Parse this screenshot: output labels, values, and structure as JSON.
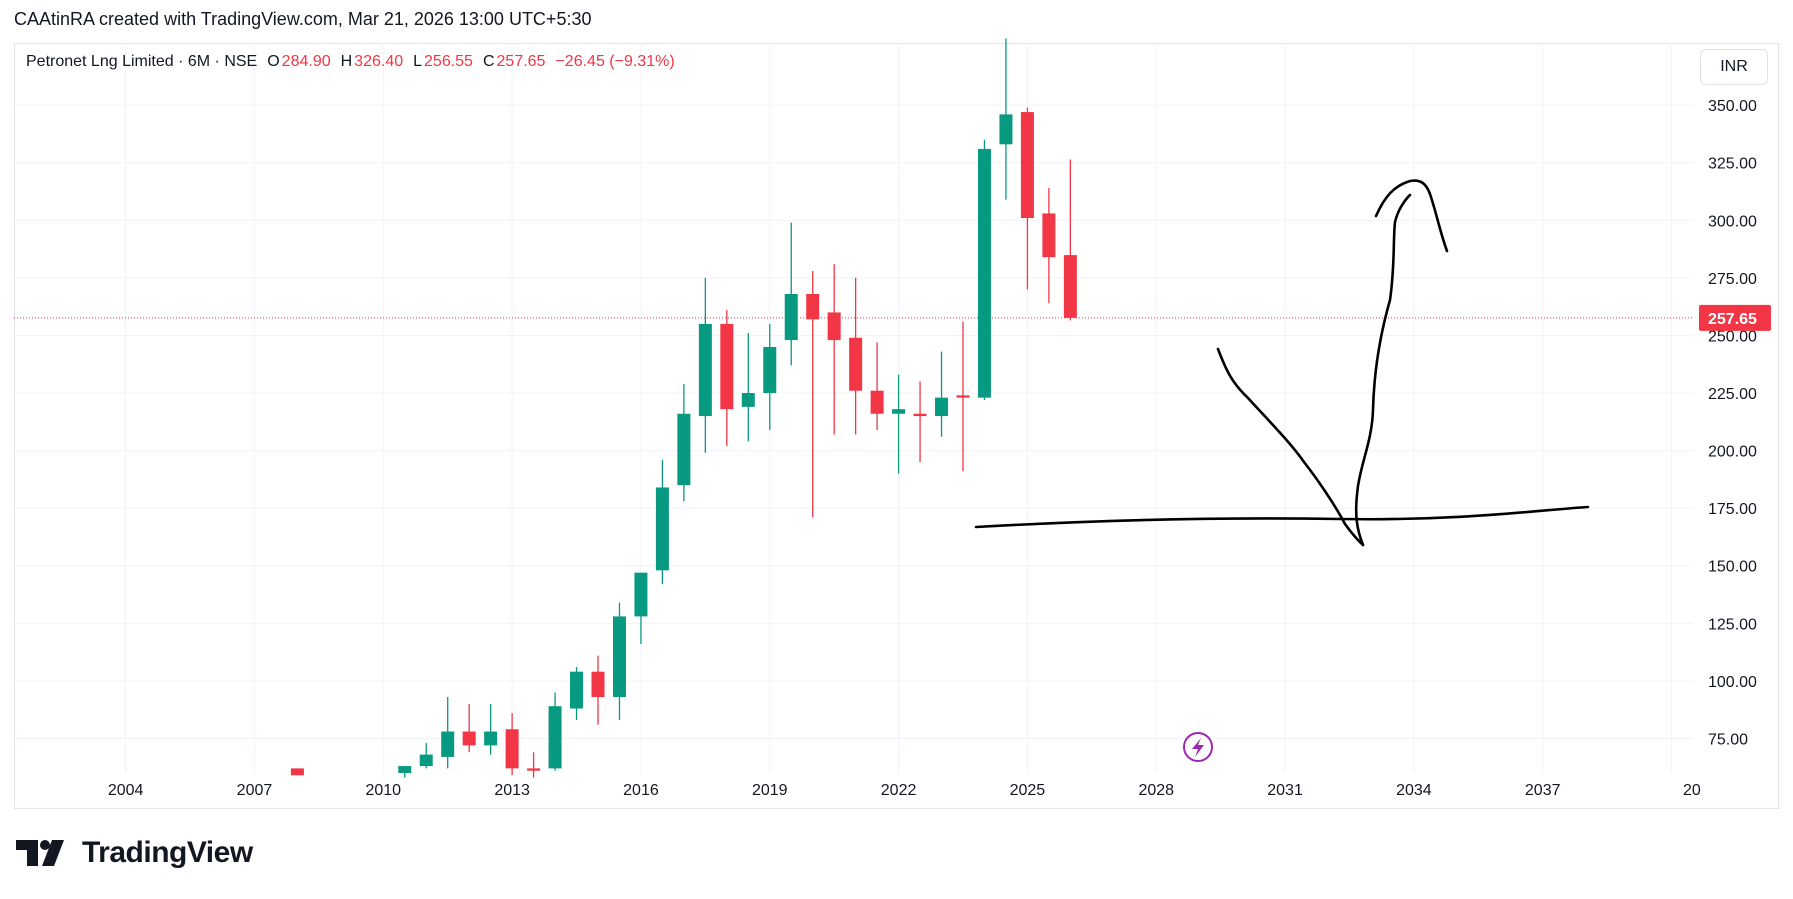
{
  "caption": "CAAtinRA created with TradingView.com, Mar 21, 2026 13:00 UTC+5:30",
  "legend": {
    "symbol": "Petronet Lng Limited · 6M · NSE",
    "open_label": "O",
    "open": "284.90",
    "high_label": "H",
    "high": "326.40",
    "low_label": "L",
    "low": "256.55",
    "close_label": "C",
    "close": "257.65",
    "change": "−26.45 (−9.31%)"
  },
  "currency": "INR",
  "brand": {
    "name": "TradingView",
    "icon": "tradingview-logo-icon"
  },
  "colors": {
    "up": "#089981",
    "down": "#f23645",
    "grid": "#f0f3fa",
    "text": "#131722",
    "drawing": "#000000"
  },
  "chart_data": {
    "type": "candlestick",
    "y_ticks": [
      "75.00",
      "100.00",
      "125.00",
      "150.00",
      "175.00",
      "200.00",
      "225.00",
      "250.00",
      "275.00",
      "300.00",
      "325.00",
      "350.00"
    ],
    "x_ticks": [
      "2004",
      "2007",
      "2010",
      "2013",
      "2016",
      "2019",
      "2022",
      "2025",
      "2028",
      "2031",
      "2034",
      "2037",
      "20"
    ],
    "ylim": [
      60,
      377
    ],
    "xlim": [
      2001.4,
      2040.5
    ],
    "last_price": "257.65",
    "grid": true,
    "candles": [
      {
        "t": 2008.0,
        "o": 62,
        "h": 62,
        "l": 59,
        "c": 59
      },
      {
        "t": 2010.5,
        "o": 60,
        "h": 63,
        "l": 58,
        "c": 63
      },
      {
        "t": 2011.0,
        "o": 63,
        "h": 73,
        "l": 62,
        "c": 68
      },
      {
        "t": 2011.5,
        "o": 67,
        "h": 93,
        "l": 62,
        "c": 78
      },
      {
        "t": 2012.0,
        "o": 78,
        "h": 90,
        "l": 69,
        "c": 72
      },
      {
        "t": 2012.5,
        "o": 72,
        "h": 90,
        "l": 68,
        "c": 78
      },
      {
        "t": 2013.0,
        "o": 79,
        "h": 86,
        "l": 59,
        "c": 62
      },
      {
        "t": 2013.5,
        "o": 62,
        "h": 69,
        "l": 58,
        "c": 61
      },
      {
        "t": 2014.0,
        "o": 62,
        "h": 95,
        "l": 61,
        "c": 89
      },
      {
        "t": 2014.5,
        "o": 88,
        "h": 106,
        "l": 83,
        "c": 104
      },
      {
        "t": 2015.0,
        "o": 104,
        "h": 111,
        "l": 81,
        "c": 93
      },
      {
        "t": 2015.5,
        "o": 93,
        "h": 134,
        "l": 83,
        "c": 128
      },
      {
        "t": 2016.0,
        "o": 128,
        "h": 147,
        "l": 116,
        "c": 147
      },
      {
        "t": 2016.5,
        "o": 148,
        "h": 196,
        "l": 142,
        "c": 184
      },
      {
        "t": 2017.0,
        "o": 185,
        "h": 229,
        "l": 178,
        "c": 216
      },
      {
        "t": 2017.5,
        "o": 215,
        "h": 275,
        "l": 199,
        "c": 255
      },
      {
        "t": 2018.0,
        "o": 255,
        "h": 261,
        "l": 202,
        "c": 218
      },
      {
        "t": 2018.5,
        "o": 219,
        "h": 251,
        "l": 204,
        "c": 225
      },
      {
        "t": 2019.0,
        "o": 225,
        "h": 255,
        "l": 209,
        "c": 245
      },
      {
        "t": 2019.5,
        "o": 248,
        "h": 299,
        "l": 237,
        "c": 268
      },
      {
        "t": 2020.0,
        "o": 268,
        "h": 278,
        "l": 171,
        "c": 257
      },
      {
        "t": 2020.5,
        "o": 260,
        "h": 281,
        "l": 207,
        "c": 248
      },
      {
        "t": 2021.0,
        "o": 249,
        "h": 275,
        "l": 207,
        "c": 226
      },
      {
        "t": 2021.5,
        "o": 226,
        "h": 247,
        "l": 209,
        "c": 216
      },
      {
        "t": 2022.0,
        "o": 216,
        "h": 233,
        "l": 190,
        "c": 218
      },
      {
        "t": 2022.5,
        "o": 216,
        "h": 230,
        "l": 195,
        "c": 215
      },
      {
        "t": 2023.0,
        "o": 215,
        "h": 243,
        "l": 206,
        "c": 223
      },
      {
        "t": 2023.5,
        "o": 224,
        "h": 256,
        "l": 191,
        "c": 223
      },
      {
        "t": 2024.0,
        "o": 223,
        "h": 335,
        "l": 222,
        "c": 331
      },
      {
        "t": 2024.5,
        "o": 333,
        "h": 379,
        "l": 309,
        "c": 346
      },
      {
        "t": 2025.0,
        "o": 347,
        "h": 349,
        "l": 270,
        "c": 301
      },
      {
        "t": 2025.5,
        "o": 303,
        "h": 314,
        "l": 264,
        "c": 284
      },
      {
        "t": 2026.0,
        "o": 284.9,
        "h": 326.4,
        "l": 256.55,
        "c": 257.65
      }
    ]
  }
}
